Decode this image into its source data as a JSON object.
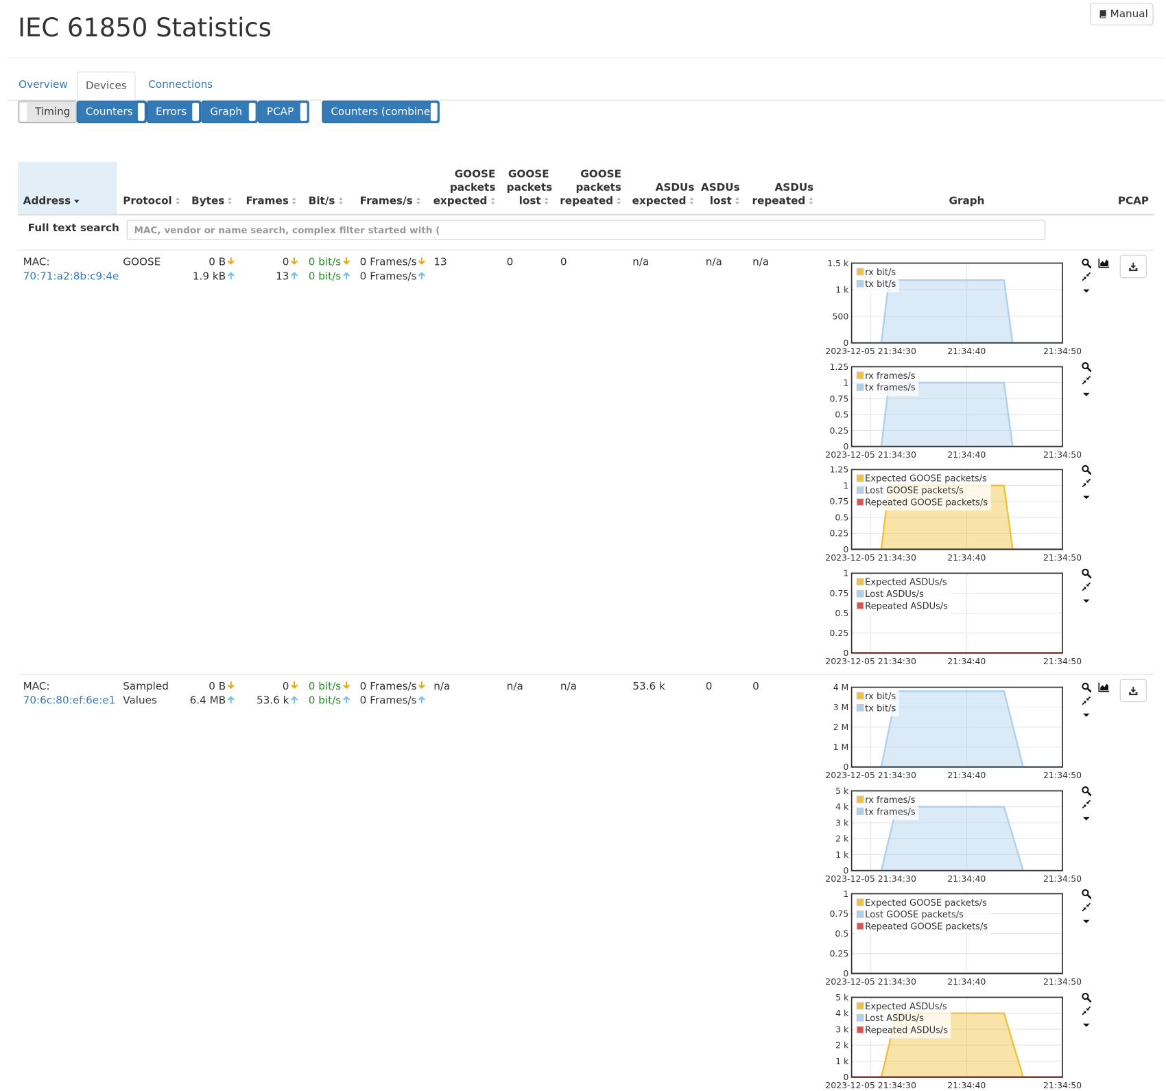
{
  "header": {
    "title": "IEC 61850 Statistics",
    "manual_button": "Manual"
  },
  "tabs": [
    "Overview",
    "Devices",
    "Connections"
  ],
  "active_tab": 1,
  "subtabs": [
    "Timing",
    "Counters",
    "Errors",
    "Graph",
    "PCAP",
    "Counters (combined)"
  ],
  "active_subtab": 0,
  "table": {
    "columns": [
      "Address",
      "Protocol",
      "Bytes",
      "Frames",
      "Bit/s",
      "Frames/s",
      "GOOSE packets expected",
      "GOOSE packets lost",
      "GOOSE packets repeated",
      "ASDUs expected",
      "ASDUs lost",
      "ASDUs repeated",
      "Graph",
      "PCAP"
    ],
    "sorted_column": 0,
    "rows": [
      {
        "mac_label": "MAC:",
        "mac": "70:71:a2:8b:c9:4e",
        "protocol": "GOOSE",
        "bytes": [
          "0 B",
          "1.9 kB"
        ],
        "frames": [
          "0",
          "13"
        ],
        "bits": [
          "0 bit/s",
          "0 bit/s"
        ],
        "fps": [
          "0 Frames/s",
          "0 Frames/s"
        ],
        "goose_expected": "13",
        "goose_lost": "0",
        "goose_repeated": "0",
        "asdu_expected": "n/a",
        "asdu_lost": "n/a",
        "asdu_repeated": "n/a",
        "graphs": [
          {
            "type": "area",
            "xlim": [
              28,
              50
            ],
            "xticks": [
              {
                "value": 30,
                "label": "2023-12-05 21:34:30"
              },
              {
                "value": 40,
                "label": "21:34:40"
              },
              {
                "value": 50,
                "label": "21:34:50"
              }
            ],
            "ylim": [
              0,
              1500
            ],
            "yticks": [
              0,
              500,
              {
                "value": 1000,
                "label": "1 k"
              },
              {
                "value": 1500,
                "label": "1.5 k"
              }
            ],
            "x": [
              28,
              31.1,
              31.9,
              43.9,
              44.8,
              50
            ],
            "series": [
              {
                "name": "rx bit/s",
                "color": "#f0c040",
                "values": [
                  0,
                  0,
                  0,
                  0,
                  0,
                  0
                ]
              },
              {
                "name": "tx bit/s",
                "color": "#afd0ed",
                "values": [
                  0,
                  0,
                  1180,
                  1180,
                  0,
                  0
                ]
              }
            ]
          },
          {
            "type": "area",
            "xlim": [
              28,
              50
            ],
            "xticks": [
              {
                "value": 30,
                "label": "2023-12-05 21:34:30"
              },
              {
                "value": 40,
                "label": "21:34:40"
              },
              {
                "value": 50,
                "label": "21:34:50"
              }
            ],
            "ylim": [
              0,
              1.25
            ],
            "yticks": [
              0,
              0.25,
              0.5,
              0.75,
              1,
              1.25
            ],
            "x": [
              28,
              31.1,
              31.9,
              43.9,
              44.8,
              50
            ],
            "series": [
              {
                "name": "rx frames/s",
                "color": "#f0c040",
                "values": [
                  0,
                  0,
                  0,
                  0,
                  0,
                  0
                ]
              },
              {
                "name": "tx frames/s",
                "color": "#afd0ed",
                "values": [
                  0,
                  0,
                  1,
                  1,
                  0,
                  0
                ]
              }
            ]
          },
          {
            "type": "area",
            "xlim": [
              28,
              50
            ],
            "xticks": [
              {
                "value": 30,
                "label": "2023-12-05 21:34:30"
              },
              {
                "value": 40,
                "label": "21:34:40"
              },
              {
                "value": 50,
                "label": "21:34:50"
              }
            ],
            "ylim": [
              0,
              1.25
            ],
            "yticks": [
              0,
              0.25,
              0.5,
              0.75,
              1,
              1.25
            ],
            "x": [
              28,
              31.1,
              31.9,
              43.9,
              44.8,
              50
            ],
            "series": [
              {
                "name": "Expected GOOSE packets/s",
                "color": "#f0c040",
                "values": [
                  0,
                  0,
                  1,
                  1,
                  0,
                  0
                ]
              },
              {
                "name": "Lost GOOSE packets/s",
                "color": "#afd0ed",
                "values": [
                  0,
                  0,
                  0,
                  0,
                  0,
                  0
                ]
              },
              {
                "name": "Repeated GOOSE packets/s",
                "color": "#d9534f",
                "values": [
                  0,
                  0,
                  0,
                  0,
                  0,
                  0
                ]
              }
            ]
          },
          {
            "type": "area",
            "xlim": [
              28,
              50
            ],
            "xticks": [
              {
                "value": 30,
                "label": "2023-12-05 21:34:30"
              },
              {
                "value": 40,
                "label": "21:34:40"
              },
              {
                "value": 50,
                "label": "21:34:50"
              }
            ],
            "ylim": [
              0,
              1
            ],
            "yticks": [
              0,
              0.25,
              0.5,
              0.75,
              1
            ],
            "x": [
              28,
              31.1,
              31.9,
              43.9,
              44.8,
              50
            ],
            "series": [
              {
                "name": "Expected ASDUs/s",
                "color": "#f0c040",
                "values": [
                  0,
                  0,
                  0,
                  0,
                  0,
                  0
                ]
              },
              {
                "name": "Lost ASDUs/s",
                "color": "#afd0ed",
                "values": [
                  0,
                  0,
                  0,
                  0,
                  0,
                  0
                ]
              },
              {
                "name": "Repeated ASDUs/s",
                "color": "#d9534f",
                "values": [
                  0,
                  0,
                  0,
                  0,
                  0,
                  0
                ]
              }
            ]
          }
        ]
      },
      {
        "mac_label": "MAC:",
        "mac": "70:6c:80:ef:6e:e1",
        "protocol": "Sampled Values",
        "bytes": [
          "0 B",
          "6.4 MB"
        ],
        "frames": [
          "0",
          "53.6 k"
        ],
        "bits": [
          "0 bit/s",
          "0 bit/s"
        ],
        "fps": [
          "0 Frames/s",
          "0 Frames/s"
        ],
        "goose_expected": "n/a",
        "goose_lost": "n/a",
        "goose_repeated": "n/a",
        "asdu_expected": "53.6 k",
        "asdu_lost": "0",
        "asdu_repeated": "0",
        "graphs": [
          {
            "type": "area",
            "xlim": [
              28,
              50
            ],
            "xticks": [
              {
                "value": 30,
                "label": "2023-12-05 21:34:30"
              },
              {
                "value": 40,
                "label": "21:34:40"
              },
              {
                "value": 50,
                "label": "21:34:50"
              }
            ],
            "ylim": [
              0,
              4000000
            ],
            "yticks": [
              0,
              {
                "value": 1000000,
                "label": "1 M"
              },
              {
                "value": 2000000,
                "label": "2 M"
              },
              {
                "value": 3000000,
                "label": "3 M"
              },
              {
                "value": 4000000,
                "label": "4 M"
              }
            ],
            "x": [
              28,
              31.1,
              32.7,
              43.9,
              45.9,
              50
            ],
            "series": [
              {
                "name": "rx bit/s",
                "color": "#f0c040",
                "values": [
                  0,
                  0,
                  0,
                  0,
                  0,
                  0
                ]
              },
              {
                "name": "tx bit/s",
                "color": "#afd0ed",
                "values": [
                  0,
                  0,
                  3800000,
                  3800000,
                  0,
                  0
                ]
              }
            ]
          },
          {
            "type": "area",
            "xlim": [
              28,
              50
            ],
            "xticks": [
              {
                "value": 30,
                "label": "2023-12-05 21:34:30"
              },
              {
                "value": 40,
                "label": "21:34:40"
              },
              {
                "value": 50,
                "label": "21:34:50"
              }
            ],
            "ylim": [
              0,
              5000
            ],
            "yticks": [
              0,
              {
                "value": 1000,
                "label": "1 k"
              },
              {
                "value": 2000,
                "label": "2 k"
              },
              {
                "value": 3000,
                "label": "3 k"
              },
              {
                "value": 4000,
                "label": "4 k"
              },
              {
                "value": 5000,
                "label": "5 k"
              }
            ],
            "x": [
              28,
              31.1,
              32.7,
              43.9,
              45.9,
              50
            ],
            "series": [
              {
                "name": "rx frames/s",
                "color": "#f0c040",
                "values": [
                  0,
                  0,
                  0,
                  0,
                  0,
                  0
                ]
              },
              {
                "name": "tx frames/s",
                "color": "#afd0ed",
                "values": [
                  0,
                  0,
                  4000,
                  4000,
                  0,
                  0
                ]
              }
            ]
          },
          {
            "type": "area",
            "xlim": [
              28,
              50
            ],
            "xticks": [
              {
                "value": 30,
                "label": "2023-12-05 21:34:30"
              },
              {
                "value": 40,
                "label": "21:34:40"
              },
              {
                "value": 50,
                "label": "21:34:50"
              }
            ],
            "ylim": [
              0,
              1
            ],
            "yticks": [
              0,
              0.25,
              0.5,
              0.75,
              1
            ],
            "x": [
              28,
              31.1,
              32.7,
              43.9,
              45.9,
              50
            ],
            "series": [
              {
                "name": "Expected GOOSE packets/s",
                "color": "#f0c040",
                "values": [
                  0,
                  0,
                  0,
                  0,
                  0,
                  0
                ]
              },
              {
                "name": "Lost GOOSE packets/s",
                "color": "#afd0ed",
                "values": [
                  0,
                  0,
                  0,
                  0,
                  0,
                  0
                ]
              },
              {
                "name": "Repeated GOOSE packets/s",
                "color": "#d9534f",
                "values": [
                  0,
                  0,
                  0,
                  0,
                  0,
                  0
                ]
              }
            ]
          },
          {
            "type": "area",
            "xlim": [
              28,
              50
            ],
            "xticks": [
              {
                "value": 30,
                "label": "2023-12-05 21:34:30"
              },
              {
                "value": 40,
                "label": "21:34:40"
              },
              {
                "value": 50,
                "label": "21:34:50"
              }
            ],
            "ylim": [
              0,
              5000
            ],
            "yticks": [
              0,
              {
                "value": 1000,
                "label": "1 k"
              },
              {
                "value": 2000,
                "label": "2 k"
              },
              {
                "value": 3000,
                "label": "3 k"
              },
              {
                "value": 4000,
                "label": "4 k"
              },
              {
                "value": 5000,
                "label": "5 k"
              }
            ],
            "x": [
              28,
              31.1,
              32.7,
              43.9,
              45.9,
              50
            ],
            "series": [
              {
                "name": "Expected ASDUs/s",
                "color": "#f0c040",
                "values": [
                  0,
                  0,
                  4000,
                  4000,
                  0,
                  0
                ]
              },
              {
                "name": "Lost ASDUs/s",
                "color": "#afd0ed",
                "values": [
                  0,
                  0,
                  0,
                  0,
                  0,
                  0
                ]
              },
              {
                "name": "Repeated ASDUs/s",
                "color": "#d9534f",
                "values": [
                  0,
                  0,
                  0,
                  0,
                  0,
                  0
                ]
              }
            ]
          }
        ]
      }
    ]
  },
  "search": {
    "label": "Full text search",
    "placeholder": "MAC, vendor or name search, complex filter started with ("
  }
}
